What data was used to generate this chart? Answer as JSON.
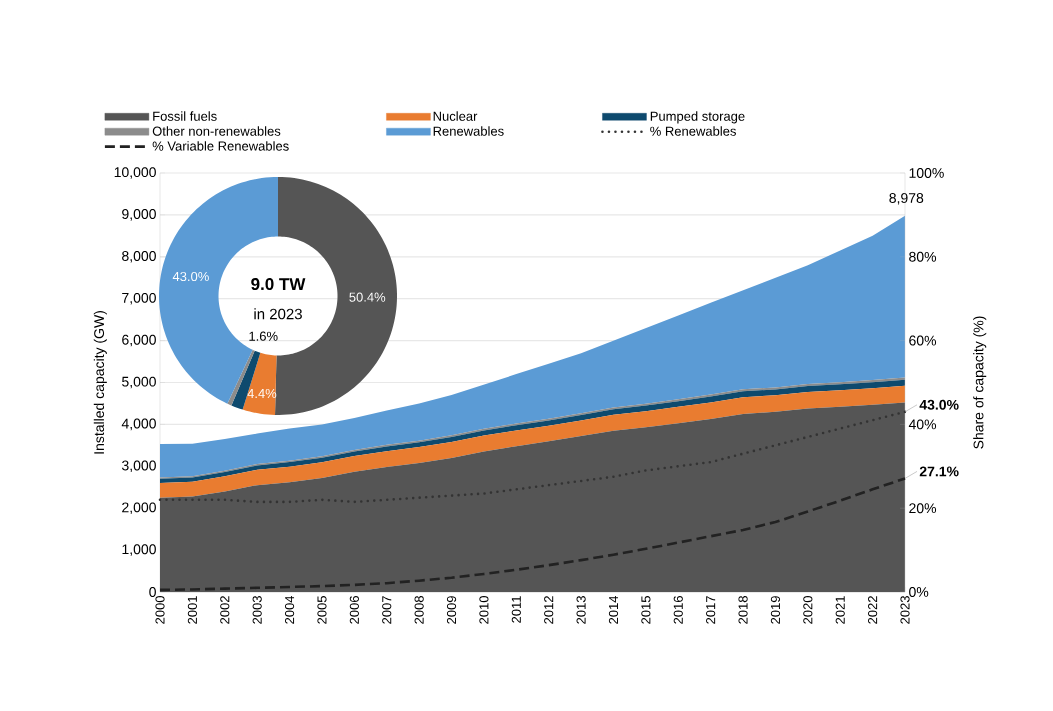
{
  "chart_data": [
    {
      "type": "area",
      "stacked": true,
      "ylabel": "Installed capacity (GW)",
      "y2label": "Share of capacity (%)",
      "grid": "y",
      "legend": "top",
      "categories": [
        "2000",
        "2001",
        "2002",
        "2003",
        "2004",
        "2005",
        "2006",
        "2007",
        "2008",
        "2009",
        "2010",
        "2011",
        "2012",
        "2013",
        "2014",
        "2015",
        "2016",
        "2017",
        "2018",
        "2019",
        "2020",
        "2021",
        "2022",
        "2023"
      ],
      "ylim": [
        0,
        10000
      ],
      "yticks": [
        0,
        {
          "value": 1000,
          "label": "1,000"
        },
        {
          "value": 2000,
          "label": "2,000"
        },
        {
          "value": 3000,
          "label": "3,000"
        },
        {
          "value": 4000,
          "label": "4,000"
        },
        {
          "value": 5000,
          "label": "5,000"
        },
        {
          "value": 6000,
          "label": "6,000"
        },
        {
          "value": 7000,
          "label": "7,000"
        },
        {
          "value": 8000,
          "label": "8,000"
        },
        {
          "value": 9000,
          "label": "9,000"
        },
        {
          "value": 10000,
          "label": "10,000"
        }
      ],
      "y2lim": [
        0,
        100
      ],
      "y2ticks": [
        {
          "value": 0,
          "label": "0%"
        },
        {
          "value": 20,
          "label": "20%"
        },
        {
          "value": 40,
          "label": "40%"
        },
        {
          "value": 60,
          "label": "60%"
        },
        {
          "value": 80,
          "label": "80%"
        },
        {
          "value": 100,
          "label": "100%"
        }
      ],
      "series": [
        {
          "name": "Fossil fuels",
          "color": "#555555",
          "values": [
            2250,
            2280,
            2400,
            2550,
            2620,
            2720,
            2870,
            2980,
            3080,
            3200,
            3350,
            3480,
            3600,
            3720,
            3850,
            3930,
            4030,
            4130,
            4250,
            4300,
            4380,
            4420,
            4470,
            4525
          ]
        },
        {
          "name": "Nuclear",
          "color": "#e97c30",
          "values": [
            350,
            350,
            360,
            365,
            370,
            375,
            375,
            380,
            380,
            380,
            385,
            375,
            370,
            375,
            380,
            385,
            390,
            395,
            400,
            395,
            395,
            395,
            395,
            395
          ]
        },
        {
          "name": "Pumped storage",
          "color": "#0e4a6e",
          "values": [
            100,
            100,
            105,
            105,
            110,
            110,
            110,
            115,
            115,
            120,
            120,
            125,
            125,
            130,
            130,
            135,
            135,
            140,
            140,
            140,
            140,
            142,
            143,
            144
          ]
        },
        {
          "name": "Other non-renewables",
          "color": "#8c8c8c",
          "values": [
            30,
            30,
            31,
            32,
            33,
            34,
            35,
            36,
            37,
            38,
            39,
            40,
            41,
            42,
            43,
            44,
            45,
            46,
            47,
            48,
            50,
            51,
            52,
            54
          ]
        },
        {
          "name": "Renewables",
          "color": "#5b9bd5",
          "values": [
            800,
            780,
            754,
            728,
            767,
            761,
            760,
            819,
            888,
            962,
            1056,
            1180,
            1314,
            1433,
            1597,
            1806,
            2000,
            2189,
            2363,
            2617,
            2835,
            3142,
            3440,
            3860
          ]
        },
        {
          "name": "% Renewables",
          "type": "line",
          "axis": "y2",
          "color": "#333333",
          "line_style": "dotted",
          "values": [
            22,
            22,
            22,
            21.5,
            21.5,
            22,
            21.5,
            22,
            22.5,
            23,
            23.5,
            24.5,
            25.5,
            26.5,
            27.5,
            29,
            30,
            31,
            33,
            35,
            37,
            39,
            41,
            43.0
          ],
          "value_labels": [
            null,
            null,
            null,
            null,
            null,
            null,
            null,
            null,
            null,
            null,
            null,
            null,
            null,
            null,
            null,
            null,
            null,
            null,
            null,
            null,
            null,
            null,
            null,
            "43.0%"
          ]
        },
        {
          "name": "% Variable Renewables",
          "type": "line",
          "axis": "y2",
          "color": "#222222",
          "line_style": "dashed",
          "values": [
            0.5,
            0.6,
            0.8,
            1.0,
            1.2,
            1.4,
            1.7,
            2.1,
            2.7,
            3.4,
            4.3,
            5.3,
            6.4,
            7.6,
            8.9,
            10.3,
            11.8,
            13.3,
            14.8,
            16.7,
            19.2,
            21.8,
            24.5,
            27.1
          ],
          "value_labels": [
            null,
            null,
            null,
            null,
            null,
            null,
            null,
            null,
            null,
            null,
            null,
            null,
            null,
            null,
            null,
            null,
            null,
            null,
            null,
            null,
            null,
            null,
            null,
            "27.1%"
          ]
        }
      ],
      "annotations": [
        {
          "text": "8,978",
          "x": "2023",
          "y": 8978
        }
      ]
    },
    {
      "type": "donut",
      "title": "9.0 TW",
      "subtitle": "in 2023",
      "categories": [
        null,
        null,
        null,
        null,
        null
      ],
      "values": [
        50.4,
        4.4,
        1.6,
        0.6,
        43.0
      ],
      "colors": [
        "#555555",
        "#e97c30",
        "#0e4a6e",
        "#8c8c8c",
        "#5b9bd5"
      ],
      "value_labels": [
        "50.4%",
        "4.4%",
        "1.6%",
        null,
        "43.0%"
      ]
    }
  ]
}
